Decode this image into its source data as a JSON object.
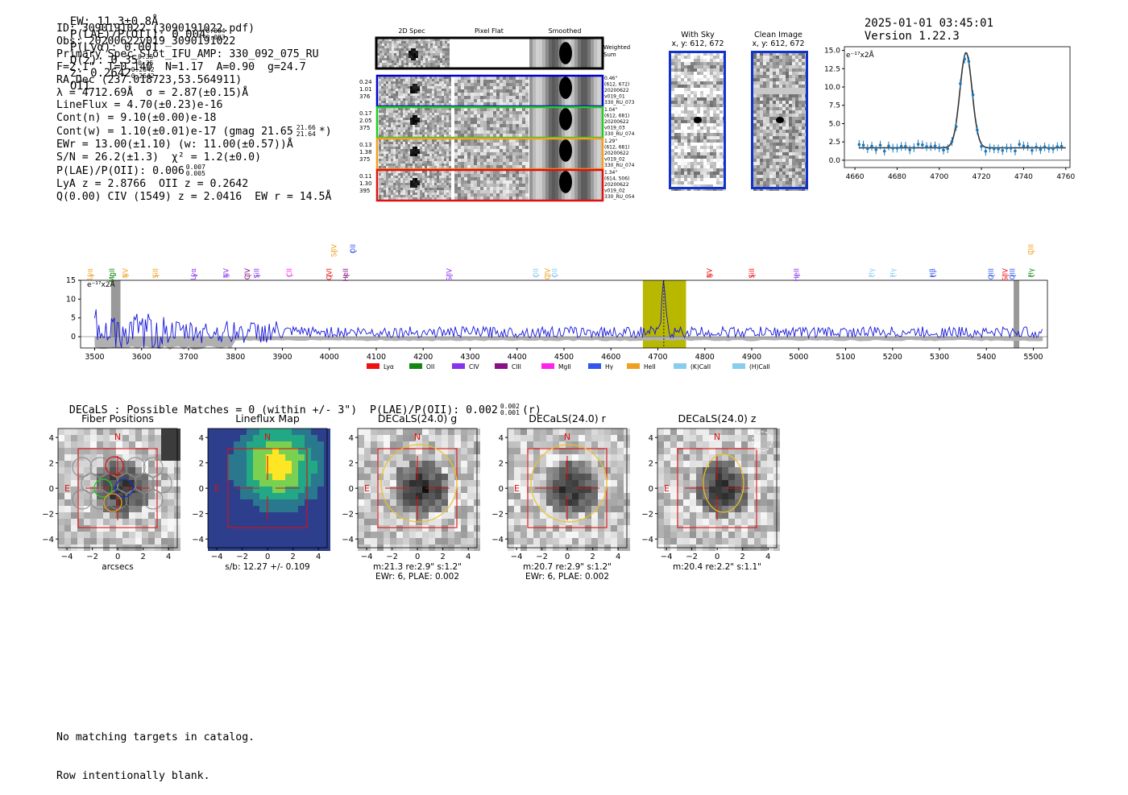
{
  "header": {
    "ew": "EW: 11.3±0.8Å",
    "plae_label": "P(LAE)/P(OII): 0.004",
    "plae_up": "0.004",
    "plae_lo": "0.003",
    "plya": "P(Lyα): 0.001",
    "qz_label": "Q(z): 0.35",
    "qz_up": "0.35",
    "qz_lo": "0.35",
    "z_label": "z: 0.2642",
    "z_up": "0.2642",
    "z_lo": "0.2642",
    "z_line": "OII",
    "timestamp": "2025-01-01 03:45:01",
    "version": "Version 1.22.3"
  },
  "info": [
    "ID: 3090191022 (3090191022.pdf)",
    "Obs: 20200622v019_3090191022",
    "Primary Spec_Slot_IFU_AMP: 330_092_075_RU",
    "F=2.1\"  T=0.140  N=1.17  A=0.90  g=24.7",
    "RA,Dec (237.018723,53.564911)",
    "λ = 4712.69Å  σ = 2.87(±0.15)Å",
    "LineFlux = 4.70(±0.23)e-16",
    "Cont(n) = 9.10(±0.00)e-18",
    "Cont(w) = 1.10(±0.01)e-17 (gmag 21.65",
    "EWr = 13.00(±1.10) (w: 11.00(±0.57))Å",
    "S/N = 26.2(±1.3)  χ² = 1.2(±0.0)",
    "P(LAE)/P(OII): 0.006",
    "LyA z = 2.8766  OII z = 0.2642",
    "Q(0.00) CIV (1549) z = 2.0416  EW r = 14.5Å"
  ],
  "info_extra": {
    "gmag_up": "21.66",
    "gmag_lo": "21.64",
    "gmag_tail": "*)",
    "plae2_up": "0.007",
    "plae2_lo": "0.005"
  },
  "cutouts": {
    "col_headers": [
      "2D Spec",
      "Pixel Flat",
      "Smoothed"
    ],
    "weighted_label": "Weighted\nSum",
    "rows": [
      {
        "left": "0.24\n1.01\n376",
        "right": "0.46\"\n(612, 672)\n20200622\nv019_01\n330_RU_073",
        "color": "#0000cc"
      },
      {
        "left": "0.17\n2.05\n375",
        "right": "1.04\"\n(612, 681)\n20200622\nv019_03\n330_RU_074",
        "color": "#22cc22"
      },
      {
        "left": "0.13\n1.38\n375",
        "right": "1.29\"\n(612, 681)\n20200622\nv019_02\n330_RU_074",
        "color": "#f0a020"
      },
      {
        "left": "0.11\n1.30\n395",
        "right": "1.34\"\n(614, 506)\n20200622\nv019_02\n330_RU_054",
        "color": "#dd1111"
      }
    ]
  },
  "sky_panels": [
    {
      "title": "With Sky",
      "sub": "x, y: 612, 672"
    },
    {
      "title": "Clean Image",
      "sub": "x, y: 612, 672"
    }
  ],
  "fit_plot": {
    "units": "e⁻¹⁷x2Å",
    "xticks": [
      "4660",
      "4680",
      "4700",
      "4720",
      "4740",
      "4760"
    ],
    "yticks": [
      "0.0",
      "2.5",
      "5.0",
      "7.5",
      "10.0",
      "12.5",
      "15.0"
    ]
  },
  "spectrum": {
    "units": "e⁻¹⁷x2Å",
    "xticks": [
      "3500",
      "3600",
      "3700",
      "3800",
      "3900",
      "4000",
      "4100",
      "4200",
      "4300",
      "4400",
      "4500",
      "4600",
      "4700",
      "4800",
      "4900",
      "5000",
      "5100",
      "5200",
      "5300",
      "5400",
      "5500"
    ],
    "yticks": [
      "0",
      "5",
      "10",
      "15"
    ],
    "legend": [
      {
        "label": "Lyα",
        "color": "#ee1111"
      },
      {
        "label": "OII",
        "color": "#118811"
      },
      {
        "label": "CIV",
        "color": "#8833ee"
      },
      {
        "label": "CIII",
        "color": "#881188"
      },
      {
        "label": "MgII",
        "color": "#ff22ee"
      },
      {
        "label": "Hγ",
        "color": "#3355ee"
      },
      {
        "label": "HeII",
        "color": "#f0a020"
      },
      {
        "label": "(K)CaII",
        "color": "#88ccee"
      },
      {
        "label": "(H)CaII",
        "color": "#88ccee"
      }
    ],
    "line_marks": [
      {
        "label": "Lyα",
        "w": 3490,
        "color": "#f0a020",
        "row": 0
      },
      {
        "label": "MgII",
        "w": 3537,
        "color": "#118811",
        "row": 0
      },
      {
        "label": "NV",
        "w": 3565,
        "color": "#f0a020",
        "row": 0
      },
      {
        "label": "SiII",
        "w": 3630,
        "color": "#f0a020",
        "row": 0
      },
      {
        "label": "Lyα",
        "w": 3710,
        "color": "#8833ee",
        "row": 0
      },
      {
        "label": "NV",
        "w": 3780,
        "color": "#8833ee",
        "row": 0
      },
      {
        "label": "CIV",
        "w": 3825,
        "color": "#881188",
        "row": 0
      },
      {
        "label": "SiII",
        "w": 3845,
        "color": "#8833ee",
        "row": 0
      },
      {
        "label": "CII",
        "w": 3915,
        "color": "#ff22ee",
        "row": 0
      },
      {
        "label": "OVI",
        "w": 4000,
        "color": "#ee1111",
        "row": 0
      },
      {
        "label": "HeII",
        "w": 4035,
        "color": "#881188",
        "row": 0
      },
      {
        "label": "SiIV",
        "w": 4010,
        "color": "#f0a020",
        "row": 1
      },
      {
        "label": "OII",
        "w": 4050,
        "color": "#3355ee",
        "row": 1
      },
      {
        "label": "SiIV",
        "w": 4255,
        "color": "#8833ee",
        "row": 0
      },
      {
        "label": "OII",
        "w": 4440,
        "color": "#88ccee",
        "row": 0
      },
      {
        "label": "CIV",
        "w": 4465,
        "color": "#f0a020",
        "row": 0
      },
      {
        "label": "OII",
        "w": 4480,
        "color": "#88ccee",
        "row": 0
      },
      {
        "label": "NV",
        "w": 4810,
        "color": "#ee1111",
        "row": 0
      },
      {
        "label": "SiII",
        "w": 4900,
        "color": "#ee1111",
        "row": 0
      },
      {
        "label": "HeII",
        "w": 4995,
        "color": "#8833ee",
        "row": 0
      },
      {
        "label": "Hγ",
        "w": 5155,
        "color": "#88ccee",
        "row": 0
      },
      {
        "label": "Hγ",
        "w": 5200,
        "color": "#88ccee",
        "row": 0
      },
      {
        "label": "Hβ",
        "w": 5285,
        "color": "#3355ee",
        "row": 0
      },
      {
        "label": "OIII",
        "w": 5410,
        "color": "#3355ee",
        "row": 0
      },
      {
        "label": "SiIV",
        "w": 5440,
        "color": "#ee1111",
        "row": 0
      },
      {
        "label": "OIII",
        "w": 5455,
        "color": "#3355ee",
        "row": 0
      },
      {
        "label": "CIII",
        "w": 5495,
        "color": "#f0a020",
        "row": 1
      },
      {
        "label": "Hγ",
        "w": 5495,
        "color": "#118811",
        "row": 0
      }
    ],
    "peak_wavelength": 4712.69,
    "highlight": [
      4668,
      4760
    ]
  },
  "decals_line": "DECaLS : Possible Matches = 0 (within +/- 3\")  P(LAE)/P(OII): 0.002",
  "decals_plae_up": "0.002",
  "decals_plae_lo": "0.001",
  "decals_band": "(r)",
  "panels": [
    {
      "title": "Fiber Positions",
      "foot1": "arcsecs",
      "foot2": ""
    },
    {
      "title": "Lineflux Map",
      "foot1": "s/b: 12.27 +/- 0.109",
      "foot2": ""
    },
    {
      "title": "DECaLS(24.0) g",
      "foot1": "m:21.3  re:2.9\"  s:1.2\"",
      "foot2": "EWr: 6, PLAE: 0.002"
    },
    {
      "title": "DECaLS(24.0) r",
      "foot1": "m:20.7  re:2.9\"  s:1.2\"",
      "foot2": "EWr: 6, PLAE: 0.002"
    },
    {
      "title": "DECaLS(24.0) z",
      "foot1": "m:20.4  re:2.2\"  s:1.1\"",
      "foot2": ""
    }
  ],
  "panel_ticks": [
    "−4",
    "−2",
    "0",
    "2",
    "4"
  ],
  "compass_n": "N",
  "compass_e": "E",
  "footer": [
    "No matching targets in catalog.",
    "Row intentionally blank."
  ]
}
